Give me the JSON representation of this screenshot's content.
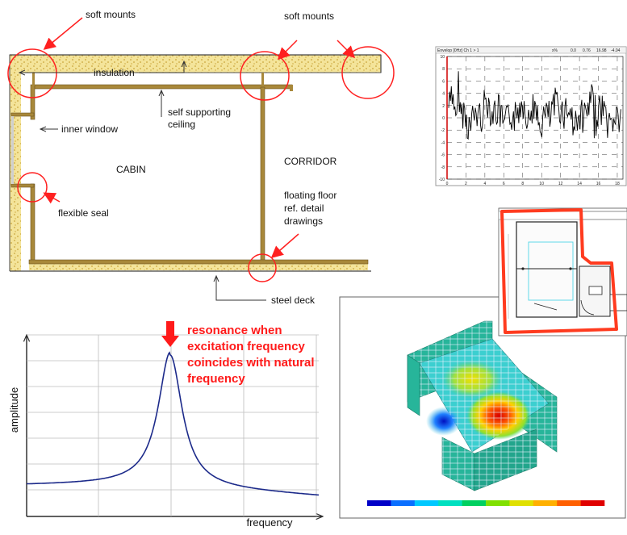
{
  "cabin_section": {
    "labels": {
      "soft_mounts_1": "soft mounts",
      "soft_mounts_2": "soft mounts",
      "insulation": "insulation",
      "self_supporting_1": "self supporting",
      "self_supporting_2": "ceiling",
      "inner_window": "inner window",
      "cabin": "CABIN",
      "corridor": "CORRIDOR",
      "floating_1": "floating floor",
      "floating_2": "ref. detail",
      "floating_3": "drawings",
      "flexible_seal": "flexible seal",
      "steel_deck": "steel deck"
    },
    "colors": {
      "frame": "#a8883a",
      "insulation": "#f2de8a",
      "callout": "#ff2020"
    }
  },
  "vibration_signal": {
    "header": {
      "title": "Envelop [0Hz] Ch 1 > 1",
      "fields": [
        "x%",
        "0.0",
        "0.76",
        "16.98",
        "-4.04"
      ]
    },
    "y_ticks": [
      "10",
      "8",
      "6",
      "4",
      "2",
      "0",
      "-2",
      "-4",
      "-6",
      "-8",
      "-10"
    ],
    "x_ticks": [
      "0",
      "2",
      "4",
      "6",
      "8",
      "10",
      "12",
      "14",
      "16",
      "18"
    ]
  },
  "resonance_plot": {
    "annotation": [
      "resonance when",
      "excitation frequency",
      "coincides with natural",
      "frequency"
    ],
    "ylabel": "amplitude",
    "xlabel": "frequency",
    "colors": {
      "curve": "#1c2a8a",
      "annotation": "#ff1a1a"
    }
  },
  "fem_model": {
    "colorbar": [
      "#0000c8",
      "#0a6fff",
      "#00c8ff",
      "#00e0c0",
      "#00d060",
      "#80e000",
      "#e0e000",
      "#ffb000",
      "#ff6000",
      "#e00000"
    ]
  },
  "floor_plan": {
    "highlight_color": "#ff3b1f"
  }
}
